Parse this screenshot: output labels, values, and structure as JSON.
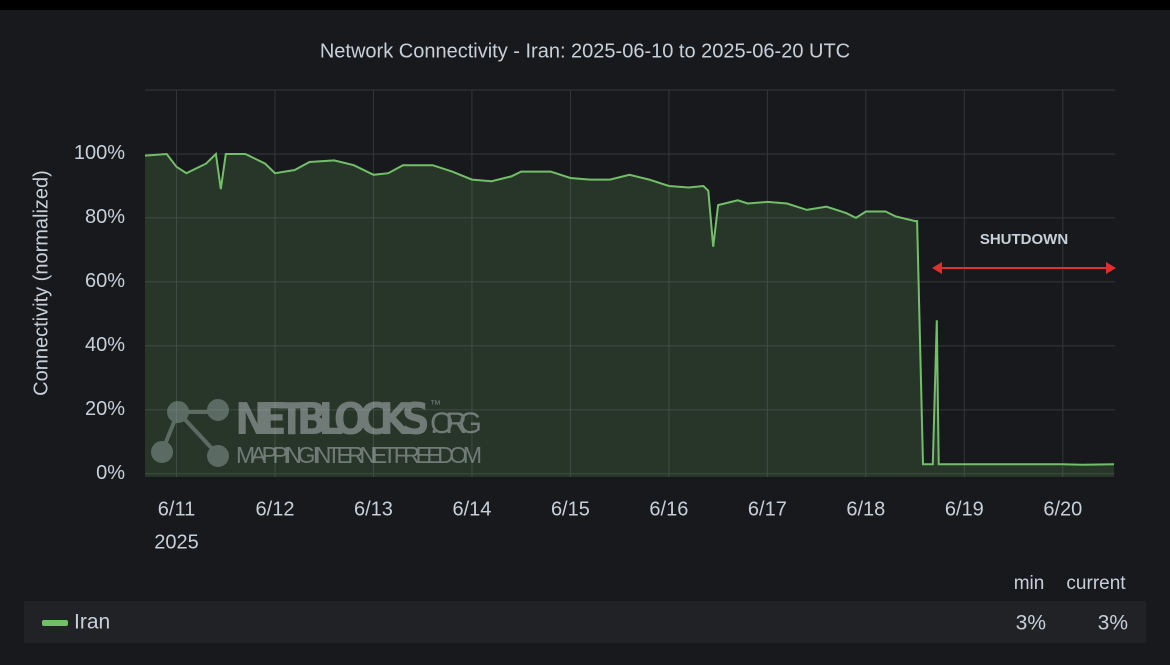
{
  "chart_data": {
    "type": "line",
    "title": "Network Connectivity - Iran: 2025-06-10 to 2025-06-20 UTC",
    "y_axis_label": "Connectivity (normalized)",
    "x_year_label": "2025",
    "xlim": [
      10.68,
      20.53
    ],
    "xticks": [
      {
        "value": 11,
        "label": "6/11"
      },
      {
        "value": 12,
        "label": "6/12"
      },
      {
        "value": 13,
        "label": "6/13"
      },
      {
        "value": 14,
        "label": "6/14"
      },
      {
        "value": 15,
        "label": "6/15"
      },
      {
        "value": 16,
        "label": "6/16"
      },
      {
        "value": 17,
        "label": "6/17"
      },
      {
        "value": 18,
        "label": "6/18"
      },
      {
        "value": 19,
        "label": "6/19"
      },
      {
        "value": 20,
        "label": "6/20"
      }
    ],
    "ylim": [
      -1,
      120
    ],
    "yticks": [
      {
        "value": 0,
        "label": "0%"
      },
      {
        "value": 20,
        "label": "20%"
      },
      {
        "value": 40,
        "label": "40%"
      },
      {
        "value": 60,
        "label": "60%"
      },
      {
        "value": 80,
        "label": "80%"
      },
      {
        "value": 100,
        "label": "100%"
      }
    ],
    "grid": true,
    "annotation": "SHUTDOWN",
    "series": [
      {
        "name": "Iran",
        "color": "#73bf69",
        "x": [
          10.68,
          10.9,
          11.0,
          11.1,
          11.3,
          11.4,
          11.45,
          11.5,
          11.7,
          11.9,
          12.0,
          12.2,
          12.35,
          12.6,
          12.8,
          13.0,
          13.15,
          13.3,
          13.6,
          13.8,
          14.0,
          14.2,
          14.4,
          14.5,
          14.8,
          15.0,
          15.2,
          15.4,
          15.6,
          15.8,
          16.0,
          16.2,
          16.35,
          16.4,
          16.45,
          16.5,
          16.7,
          16.8,
          17.0,
          17.2,
          17.4,
          17.6,
          17.8,
          17.9,
          18.0,
          18.2,
          18.3,
          18.5,
          18.52,
          18.58,
          18.68,
          18.72,
          18.74,
          19.0,
          19.5,
          20.0,
          20.2,
          20.52
        ],
        "values": [
          99.5,
          100,
          96,
          94,
          97,
          100,
          89,
          100,
          100,
          97,
          94,
          95,
          97.5,
          98,
          96.5,
          93.5,
          94,
          96.5,
          96.5,
          94.5,
          92,
          91.5,
          93,
          94.5,
          94.5,
          92.5,
          92,
          92,
          93.5,
          92,
          90,
          89.5,
          90,
          88.5,
          71,
          84,
          85.5,
          84.5,
          85,
          84.5,
          82.5,
          83.5,
          81.5,
          80,
          82,
          82,
          80.5,
          79,
          79,
          3,
          3,
          48,
          3,
          3,
          3,
          3,
          2.8,
          3
        ]
      }
    ],
    "legend": {
      "headers": [
        "min",
        "current"
      ],
      "values": [
        "3%",
        "3%"
      ]
    },
    "watermark": {
      "name": "NETBLOCKS",
      "mark": "™",
      "domain": ".ORG",
      "tagline": "MAPPING INTERNET FREEDOM"
    }
  }
}
